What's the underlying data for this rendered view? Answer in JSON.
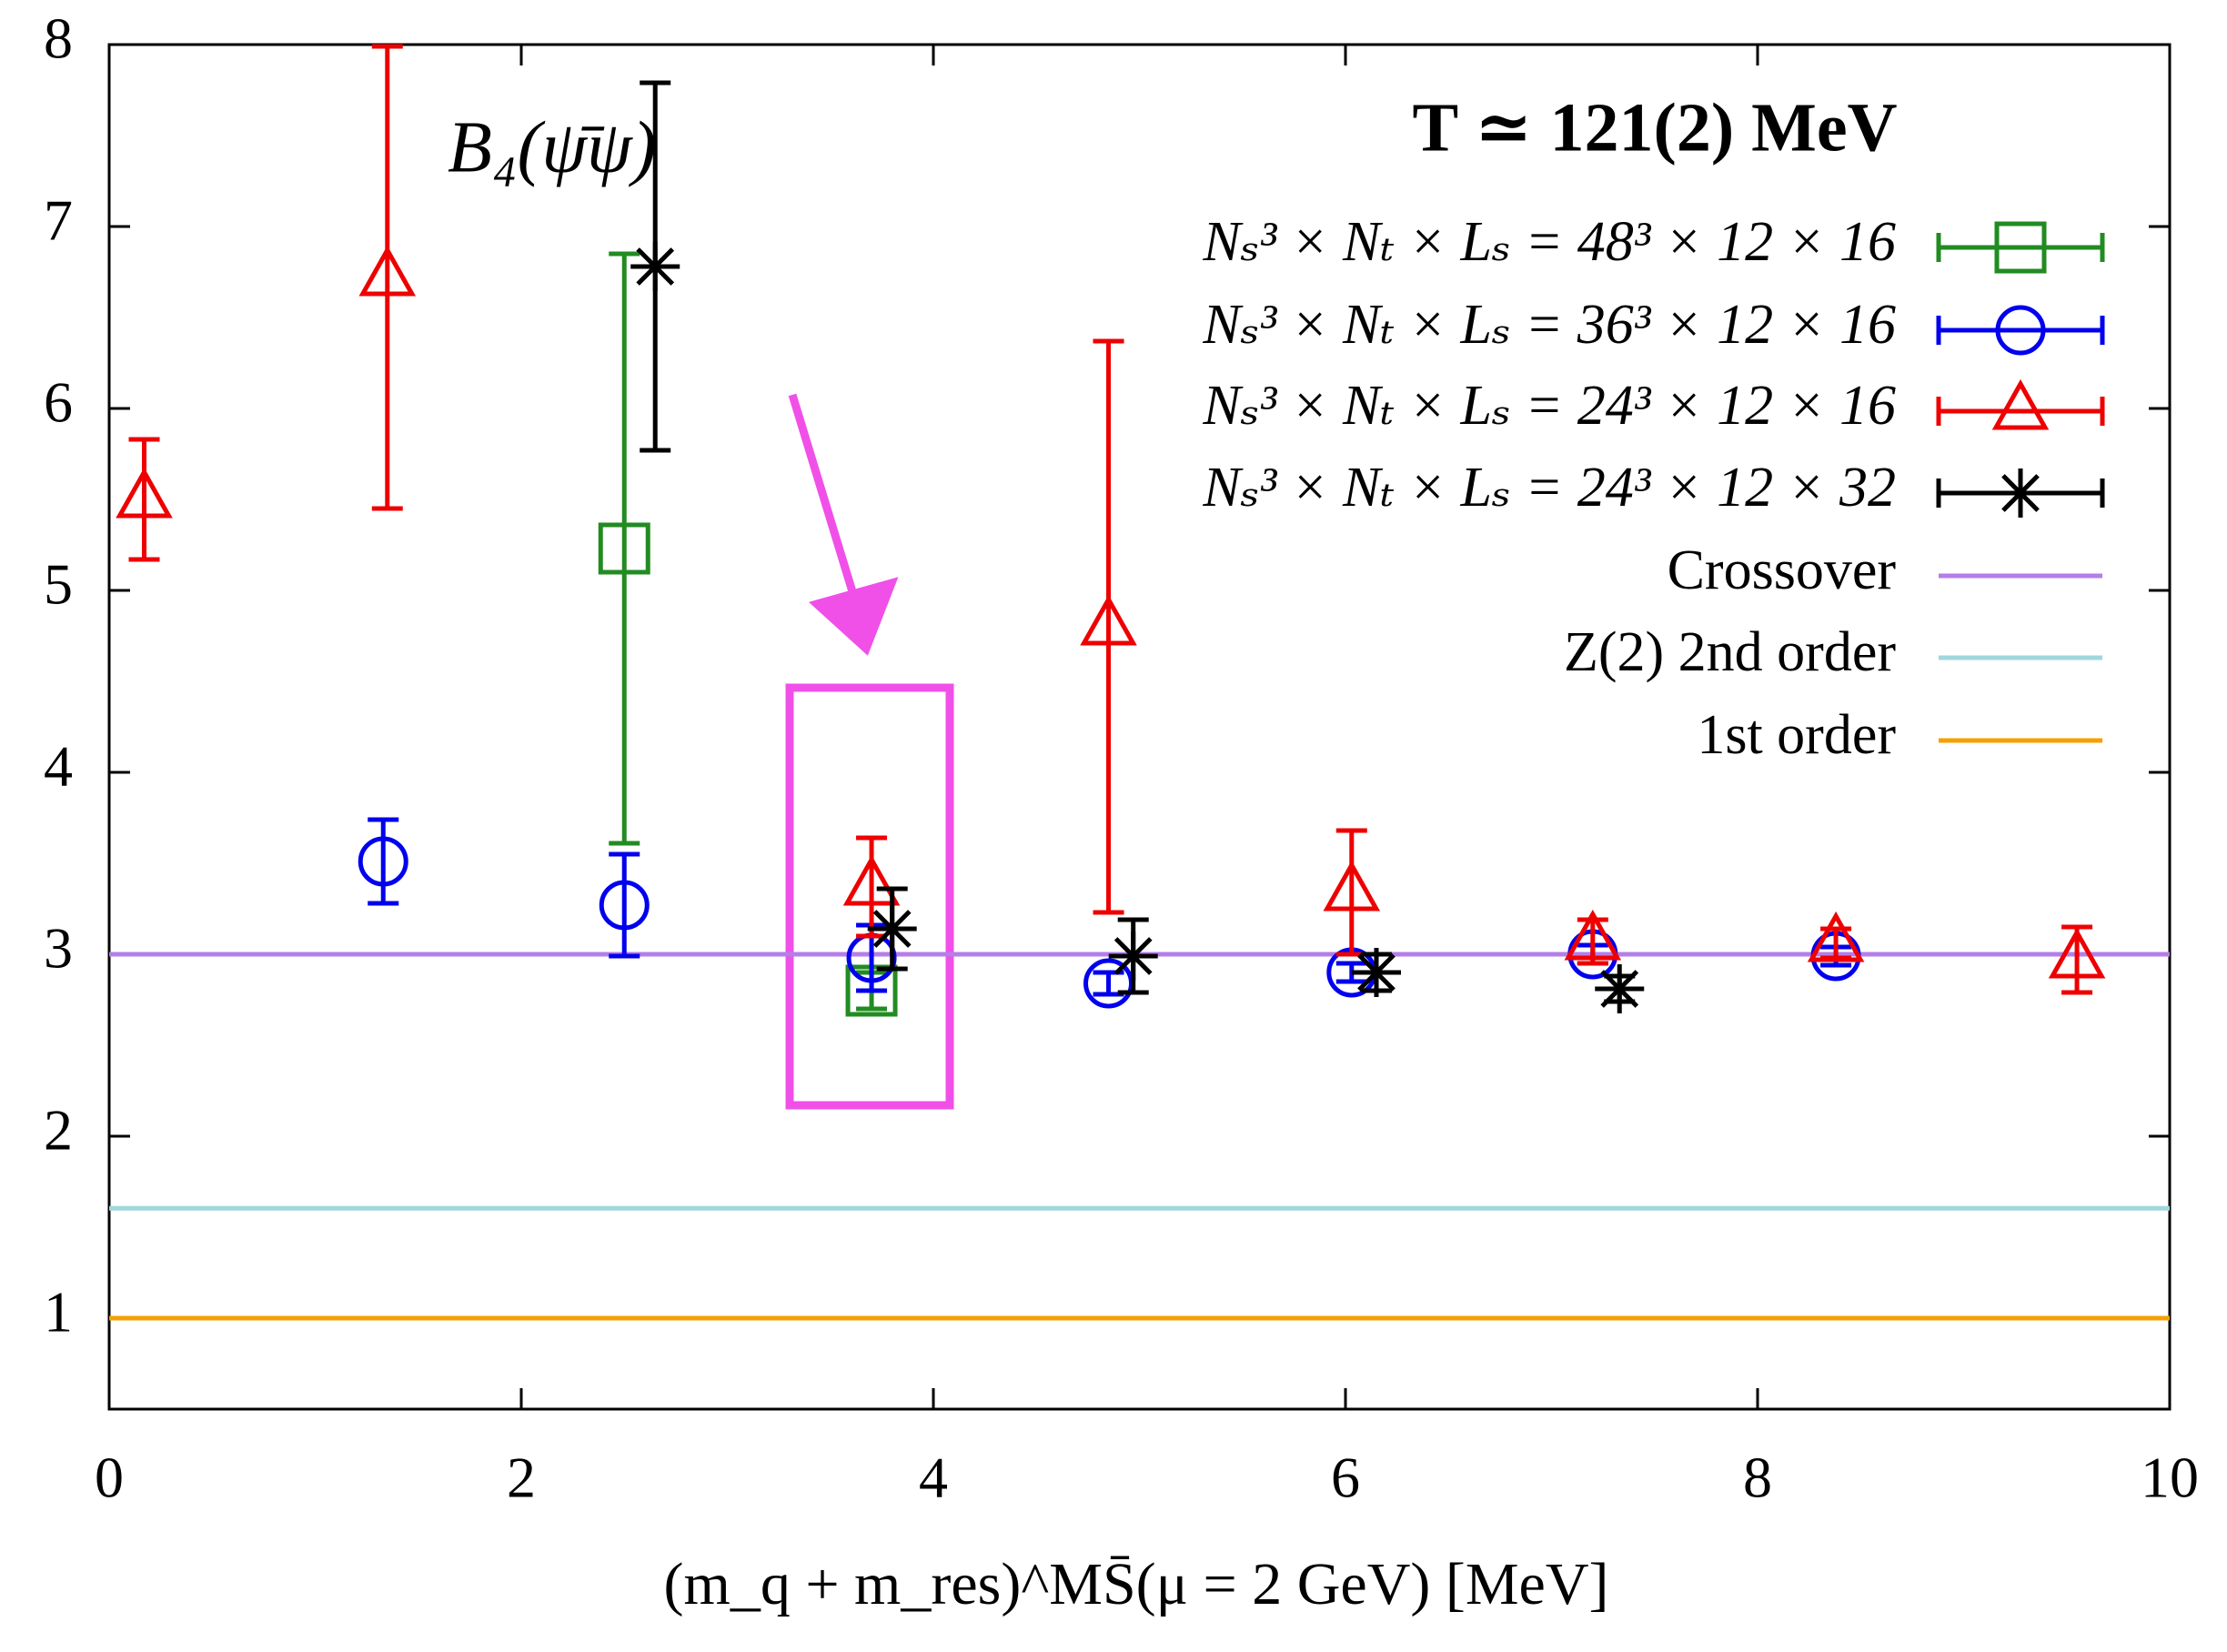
{
  "chart_data": {
    "type": "errorbar",
    "title": "T ≃ 121(2) MeV",
    "annotation": "B₄(ψ̄ψ)",
    "x_label": "(m_q + m_res)^MS̄(μ = 2 GeV) [MeV]",
    "xlim": [
      0,
      10
    ],
    "xticks": [
      0,
      2,
      4,
      6,
      8,
      10
    ],
    "ylim": [
      0.5,
      8
    ],
    "yticks": [
      1,
      2,
      3,
      4,
      5,
      6,
      7,
      8
    ],
    "series": [
      {
        "name": "Nₛ³ × Nₜ × Lₛ = 48³ × 12 × 16",
        "color": "#228b22",
        "marker": "square",
        "x": [
          2.5,
          3.7
        ],
        "values": [
          5.23,
          2.8
        ],
        "errors": [
          1.62,
          0.1
        ]
      },
      {
        "name": "Nₛ³ × Nₜ × Lₛ = 36³ × 12 × 16",
        "color": "#0000ee",
        "marker": "circle",
        "x": [
          1.33,
          2.5,
          3.7,
          4.85,
          6.03,
          7.2,
          8.38
        ],
        "values": [
          3.51,
          3.27,
          2.98,
          2.84,
          2.9,
          3.0,
          2.99
        ],
        "errors": [
          0.23,
          0.28,
          0.18,
          0.06,
          0.05,
          0.05,
          0.05
        ]
      },
      {
        "name": "Nₛ³ × Nₜ × Lₛ = 24³ × 12 × 16",
        "color": "#ee0000",
        "marker": "triangle",
        "x": [
          0.17,
          1.35,
          3.7,
          4.85,
          6.03,
          7.2,
          8.38,
          9.55
        ],
        "values": [
          5.5,
          6.72,
          3.37,
          4.8,
          3.34,
          3.07,
          3.06,
          2.97
        ],
        "errors": [
          0.33,
          1.27,
          0.27,
          1.57,
          0.34,
          0.12,
          0.08,
          0.18
        ]
      },
      {
        "name": "Nₛ³ × Nₜ × Lₛ = 24³ × 12 × 32",
        "color": "#000000",
        "marker": "star",
        "x": [
          2.65,
          3.8,
          4.97,
          6.15,
          7.33
        ],
        "values": [
          6.78,
          3.14,
          2.99,
          2.9,
          2.81
        ],
        "errors": [
          1.01,
          0.22,
          0.2,
          0.1,
          0.07
        ]
      }
    ],
    "reference_lines": [
      {
        "name": "Crossover",
        "color": "#b57ee8",
        "value": 3
      },
      {
        "name": "Z(2) 2nd order",
        "color": "#9ed8dc",
        "value": 1.604
      },
      {
        "name": "1st order",
        "color": "#f5a000",
        "value": 1
      }
    ]
  }
}
